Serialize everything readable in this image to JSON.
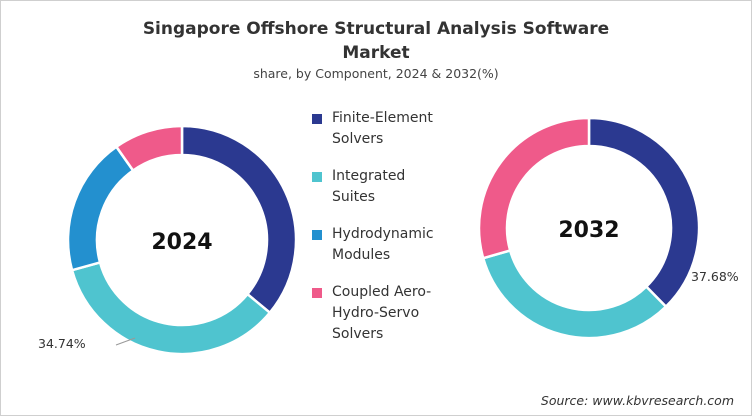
{
  "chart_data": [
    {
      "type": "pie",
      "subtype": "donut",
      "center_label": "2024",
      "categories": [
        "Finite-Element Solvers",
        "Integrated Suites",
        "Hydrodynamic Modules",
        "Coupled Aero-Hydro-Servo Solvers"
      ],
      "values": [
        36.0,
        34.74,
        19.5,
        9.76
      ],
      "labels": [
        "",
        "34.74%",
        "",
        ""
      ]
    },
    {
      "type": "pie",
      "subtype": "donut",
      "center_label": "2032",
      "categories": [
        "Finite-Element Solvers",
        "Integrated Suites",
        "Hydrodynamic Modules",
        "Coupled Aero-Hydro-Servo Solvers"
      ],
      "values": [
        37.68,
        32.9,
        0,
        29.42
      ],
      "labels": [
        "37.68%",
        "",
        "",
        ""
      ]
    }
  ],
  "title_line1": "Singapore Offshore Structural Analysis Software",
  "title_line2": "Market",
  "subtitle": "share, by Component, 2024 & 2032(%)",
  "legend": [
    {
      "lines": [
        "Finite-Element",
        "Solvers"
      ],
      "color": "#2b3990"
    },
    {
      "lines": [
        "Integrated",
        "Suites"
      ],
      "color": "#4fc4cf"
    },
    {
      "lines": [
        "Hydrodynamic",
        "Modules"
      ],
      "color": "#2390cf"
    },
    {
      "lines": [
        "Coupled Aero-",
        "Hydro-Servo",
        "Solvers"
      ],
      "color": "#ef5a8a"
    }
  ],
  "colors": [
    "#2b3990",
    "#4fc4cf",
    "#2390cf",
    "#ef5a8a"
  ],
  "source": "Source: www.kbvresearch.com"
}
